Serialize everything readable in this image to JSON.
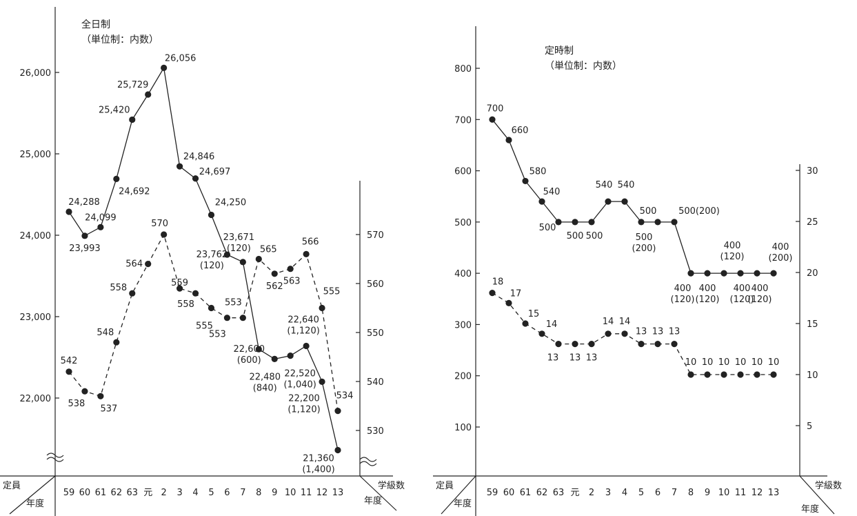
{
  "chart_data": [
    {
      "type": "line",
      "title": "全日制",
      "subtitle": "（単位制：内数）",
      "categories": [
        "59",
        "60",
        "61",
        "62",
        "63",
        "元",
        "2",
        "3",
        "4",
        "5",
        "6",
        "7",
        "8",
        "9",
        "10",
        "11",
        "12",
        "13"
      ],
      "corner_left_top": "定員",
      "corner_left_bottom": "年度",
      "corner_right_top": "学級数",
      "corner_right_bottom": "年度",
      "y_left": {
        "ticks": [
          "22,000",
          "23,000",
          "24,000",
          "25,000",
          "26,000"
        ],
        "values": [
          22000,
          23000,
          24000,
          25000,
          26000
        ],
        "range": [
          21300,
          26700
        ]
      },
      "y_right": {
        "ticks": [
          "530",
          "540",
          "550",
          "560",
          "570"
        ],
        "values": [
          530,
          540,
          550,
          560,
          570
        ],
        "range": [
          525.3,
          577
        ]
      },
      "series": [
        {
          "axis": "left",
          "style": "solid",
          "values": [
            24288,
            23993,
            24099,
            24692,
            25420,
            25729,
            26056,
            24846,
            24697,
            24250,
            23762,
            23671,
            22600,
            22480,
            22520,
            22640,
            22200,
            21360
          ],
          "labels": [
            "24,288",
            "23,993",
            "24,099",
            "24,692",
            "25,420",
            "25,729",
            "26,056",
            "24,846",
            "24,697",
            "24,250",
            "23,762\n(120)",
            "23,671\n(120)",
            "22,600\n(600)",
            "22,480\n(840)",
            "22,520\n(1,040)",
            "22,640\n(1,120)",
            "22,200\n(1,120)",
            "21,360\n(1,400)"
          ]
        },
        {
          "axis": "right",
          "style": "dashed",
          "values": [
            542,
            538,
            537,
            548,
            558,
            564,
            570,
            559,
            558,
            555,
            553,
            553,
            565,
            562,
            563,
            566,
            555,
            534
          ],
          "labels": [
            "542",
            "538",
            "537",
            "548",
            "558",
            "564",
            "570",
            "559",
            "558",
            "555",
            "553",
            "553",
            "565",
            "562",
            "563",
            "566",
            "555",
            "534"
          ]
        }
      ]
    },
    {
      "type": "line",
      "title": "定時制",
      "subtitle": "（単位制：内数）",
      "categories": [
        "59",
        "60",
        "61",
        "62",
        "63",
        "元",
        "2",
        "3",
        "4",
        "5",
        "6",
        "7",
        "8",
        "9",
        "10",
        "11",
        "12",
        "13"
      ],
      "corner_left_top": "定員",
      "corner_left_bottom": "年度",
      "corner_right_top": "学級数",
      "corner_right_bottom": "年度",
      "y_left": {
        "ticks": [
          "100",
          "200",
          "300",
          "400",
          "500",
          "600",
          "700",
          "800"
        ],
        "values": [
          100,
          200,
          300,
          400,
          500,
          600,
          700,
          800
        ],
        "range": [
          0,
          860
        ]
      },
      "y_right": {
        "ticks": [
          "5",
          "10",
          "15",
          "20",
          "25",
          "30"
        ],
        "values": [
          5,
          10,
          15,
          20,
          25,
          30
        ],
        "range": [
          0,
          43
        ]
      },
      "series": [
        {
          "axis": "left",
          "style": "solid",
          "values": [
            700,
            660,
            580,
            540,
            500,
            500,
            500,
            540,
            540,
            500,
            500,
            500,
            400,
            400,
            400,
            400,
            400,
            400
          ],
          "labels": [
            "700",
            "660",
            "580",
            "540",
            "500",
            "500",
            "500",
            "540",
            "540",
            "500",
            "500\n(200)",
            "500(200)",
            "400\n(120)",
            "400\n(120)",
            "400\n(120)",
            "400\n(120)",
            "400\n(120)",
            "400\n(200)"
          ]
        },
        {
          "axis": "right",
          "style": "dashed",
          "values": [
            18,
            17,
            15,
            14,
            13,
            13,
            13,
            14,
            14,
            13,
            13,
            13,
            10,
            10,
            10,
            10,
            10,
            10
          ],
          "labels": [
            "18",
            "17",
            "15",
            "14",
            "13",
            "13",
            "13",
            "14",
            "14",
            "13",
            "13",
            "13",
            "10",
            "10",
            "10",
            "10",
            "10",
            "10"
          ]
        }
      ]
    }
  ]
}
